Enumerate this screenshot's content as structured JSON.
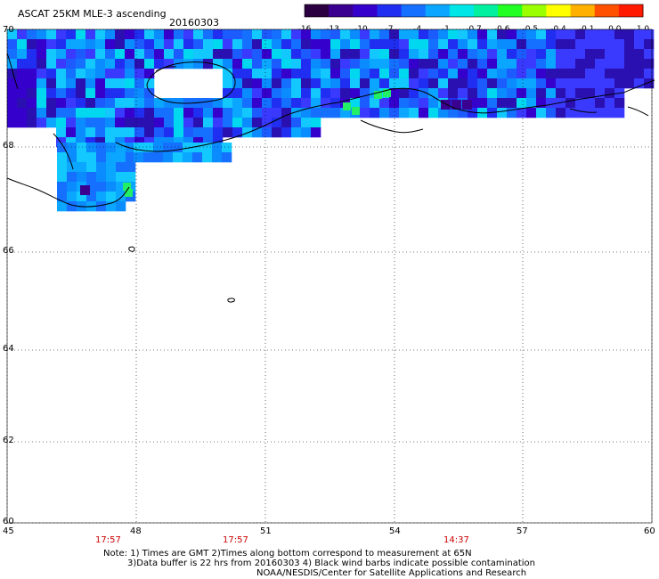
{
  "header": {
    "product_title": "ASCAT 25KM MLE-3 ascending",
    "date": "20160303"
  },
  "colorbar": {
    "ticks": [
      "-16",
      "-13",
      "-10",
      "-7",
      "-4",
      "-1",
      "-0.7",
      "-0.6",
      "-0.5",
      "-0.4",
      "-0.1",
      "0.0",
      "1.0"
    ],
    "colors": [
      "#2a0040",
      "#3a0090",
      "#3600cc",
      "#1f2ef0",
      "#1570ff",
      "#0aa6ff",
      "#00e6e6",
      "#00f0a0",
      "#22ff22",
      "#9aff00",
      "#ffff00",
      "#ffb000",
      "#ff5000",
      "#ff1a00"
    ]
  },
  "axes": {
    "lat_labels": [
      "70",
      "68",
      "66",
      "64",
      "62",
      "60"
    ],
    "lon_labels": [
      "45",
      "48",
      "51",
      "54",
      "57",
      "60"
    ]
  },
  "pass_times": [
    "17:57",
    "17:57",
    "14:37"
  ],
  "notes": {
    "line1": "Note: 1) Times are GMT 2)Times along bottom correspond to measurement at 65N",
    "line2": "3)Data buffer is 22 hrs from 20160303 4) Black wind barbs indicate possible contamination",
    "line3": "NOAA/NESDIS/Center for Satellite Applications and Research"
  }
}
